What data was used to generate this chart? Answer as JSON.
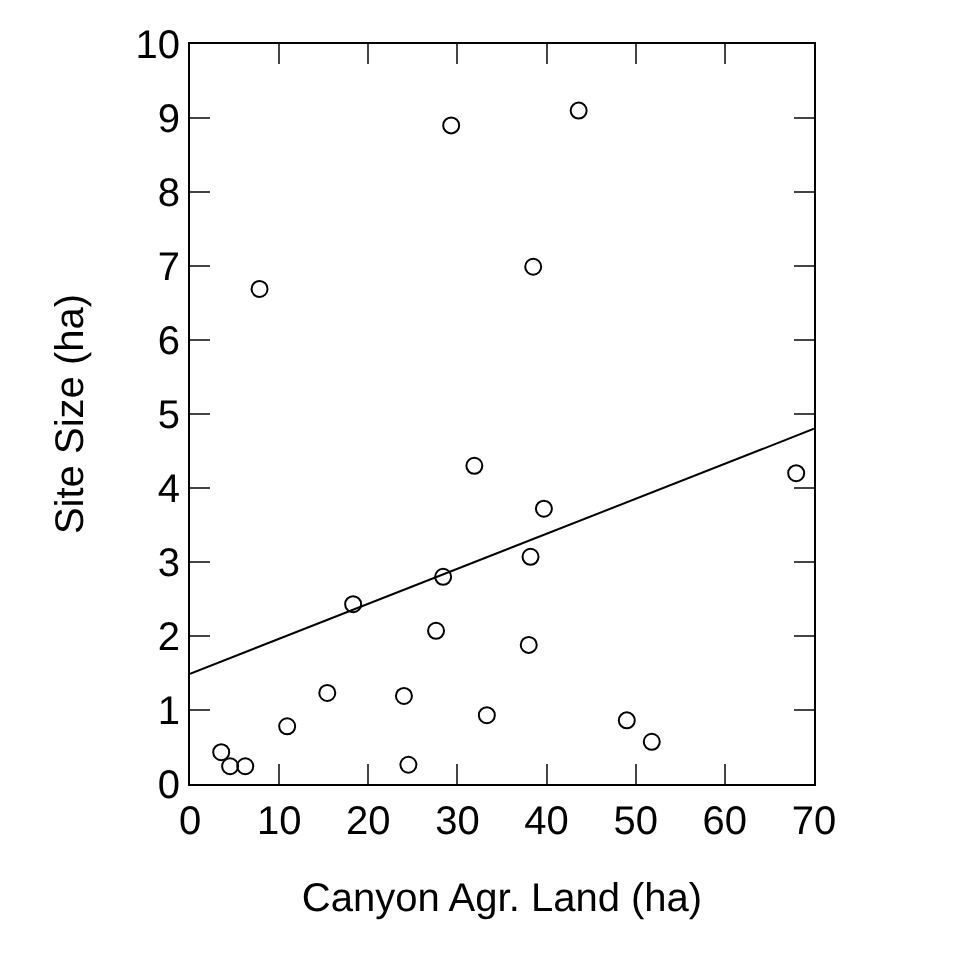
{
  "chart_data": {
    "type": "scatter",
    "xlabel": "Canyon Agr. Land (ha)",
    "ylabel": "Site Size (ha)",
    "xlim": [
      0,
      70
    ],
    "xticks": [
      0,
      10,
      20,
      30,
      40,
      50,
      60,
      70
    ],
    "ylim": [
      0,
      10
    ],
    "yticks": [
      0,
      1,
      2,
      3,
      4,
      5,
      6,
      7,
      8,
      9,
      10
    ],
    "grid": false,
    "marker": "circle",
    "series": [
      {
        "color": "#000000",
        "x": [
          3.5,
          4.5,
          6.2,
          7.8,
          10.9,
          15.4,
          18.3,
          24.0,
          24.5,
          27.6,
          28.4,
          29.3,
          43.6,
          38.5,
          31.9,
          39.7,
          38.2,
          38.0,
          33.3,
          49.0,
          51.8,
          68.0
        ],
        "values": [
          0.43,
          0.24,
          0.24,
          6.69,
          0.78,
          1.23,
          2.43,
          1.19,
          0.26,
          2.07,
          2.8,
          8.9,
          9.1,
          6.99,
          4.3,
          3.72,
          3.07,
          1.88,
          0.93,
          0.86,
          0.57,
          4.2
        ]
      },
      {
        "type": "line",
        "color": "#000000",
        "x": [
          0,
          70
        ],
        "values": [
          1.49,
          4.8
        ],
        "marker": "none",
        "line_style": "solid"
      }
    ]
  }
}
